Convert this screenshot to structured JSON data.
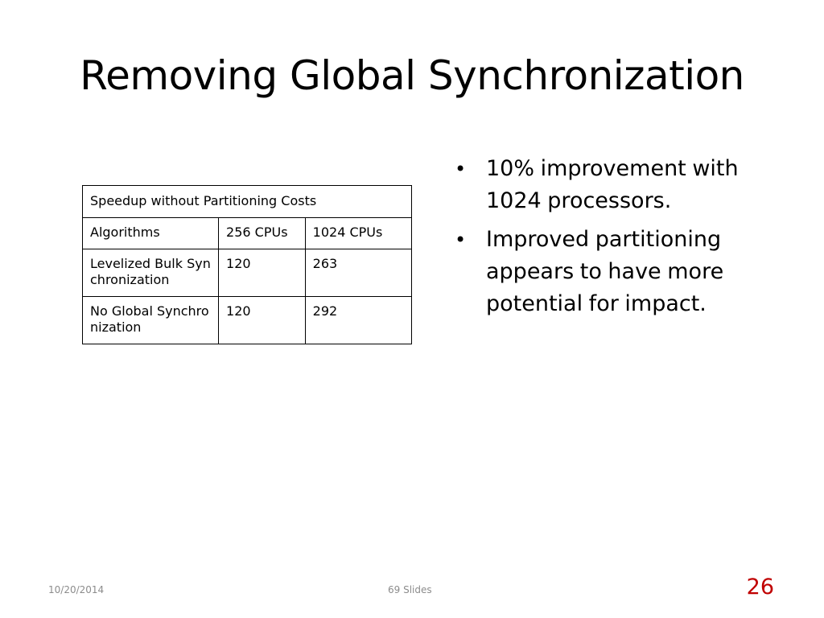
{
  "slide": {
    "title": "Removing Global Synchronization"
  },
  "table": {
    "caption": "Speedup without Partitioning Costs",
    "headers": [
      "Algorithms",
      "256 CPUs",
      "1024 CPUs"
    ],
    "rows": [
      [
        "Levelized Bulk Synchronization",
        "120",
        "263"
      ],
      [
        "No Global Synchronization",
        "120",
        "292"
      ]
    ]
  },
  "bullets": [
    "10% improvement with 1024 processors.",
    "Improved partitioning appears to have more potential for impact."
  ],
  "footer": {
    "date": "10/20/2014",
    "center": "69 Slides",
    "slide_number": "26"
  },
  "colors": {
    "slide_number": "#c00000",
    "footer_text": "#8c8c8c"
  }
}
